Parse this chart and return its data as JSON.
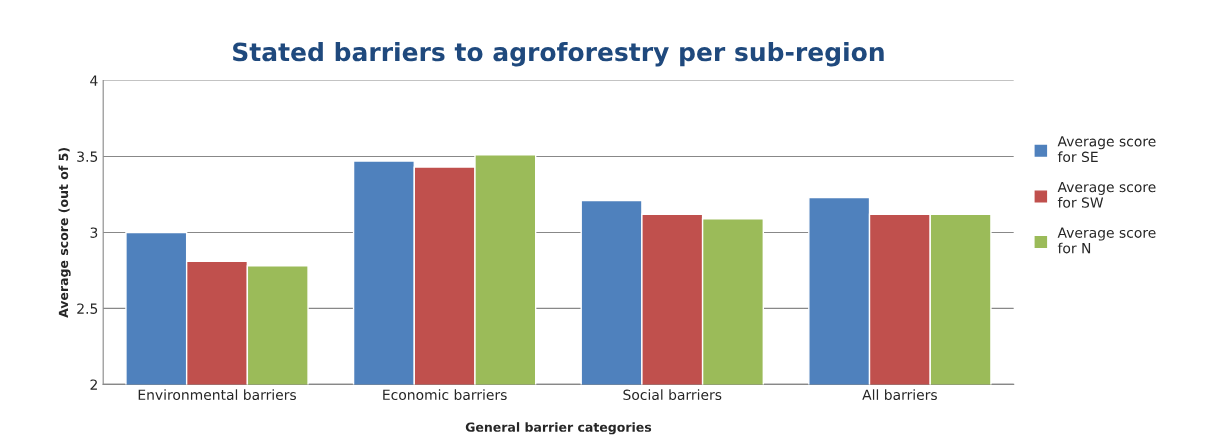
{
  "chart_data": {
    "type": "bar",
    "title": "Stated barriers to agroforestry per sub-region",
    "xlabel": "General barrier categories",
    "ylabel": "Average score (out of 5)",
    "categories": [
      "Environmental barriers",
      "Economic barriers",
      "Social barriers",
      "All barriers"
    ],
    "series": [
      {
        "name": "Average score\nfor SE",
        "color": "#4f81bd",
        "values": [
          3.0,
          3.47,
          3.21,
          3.23
        ]
      },
      {
        "name": "Average score\nfor SW",
        "color": "#c0504d",
        "values": [
          2.81,
          3.43,
          3.12,
          3.12
        ]
      },
      {
        "name": "Average score\nfor N",
        "color": "#9bbb59",
        "values": [
          2.78,
          3.51,
          3.09,
          3.12
        ]
      }
    ],
    "ylim": [
      2,
      4
    ],
    "yticks": [
      2,
      2.5,
      3,
      3.5,
      4
    ],
    "grid": "y",
    "legend": "right"
  }
}
